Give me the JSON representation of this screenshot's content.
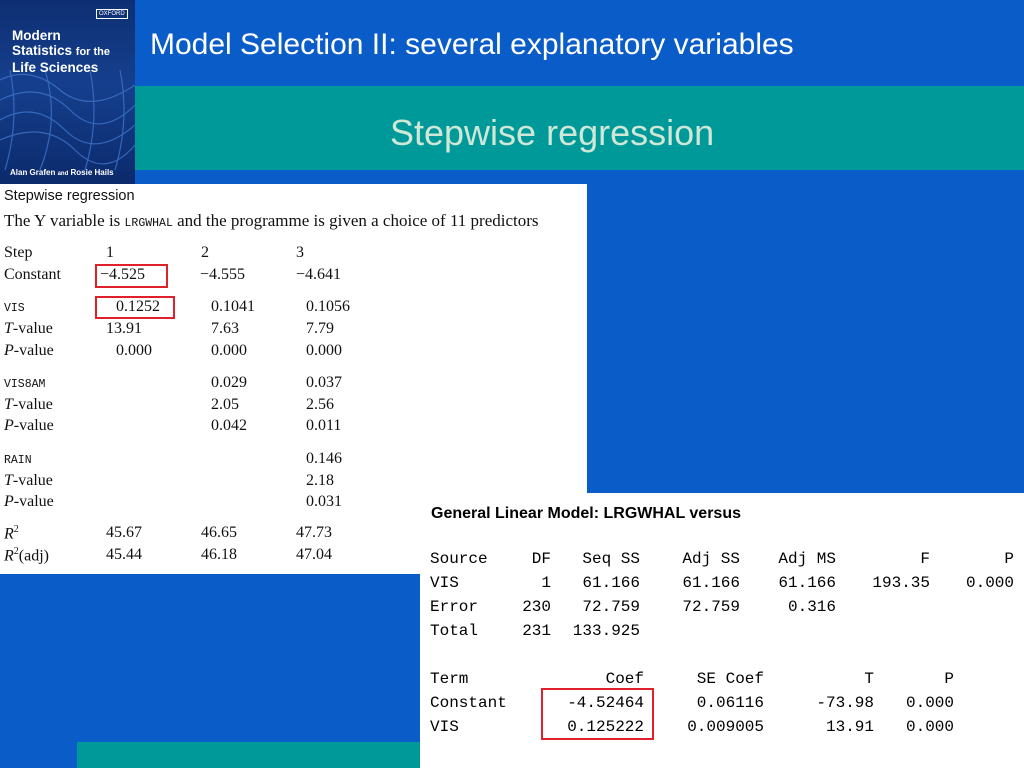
{
  "book": {
    "title_line1": "Modern",
    "title_line2a": "Statistics",
    "title_line2b": "for the",
    "title_line3": "Life Sciences",
    "authors_a": "Alan Grafen",
    "authors_and": "and",
    "authors_b": "Rosie Hails",
    "publisher": "OXFORD"
  },
  "slide": {
    "title": "Model Selection II: several explanatory variables",
    "subtitle": "Stepwise regression"
  },
  "stepwise": {
    "heading": "Stepwise regression",
    "desc_pre": "The Y variable is",
    "desc_var": "LRGWHAL",
    "desc_post": "and the programme is given a choice of 11 predictors",
    "step_label": "Step",
    "steps": [
      "1",
      "2",
      "3"
    ],
    "constant_label": "Constant",
    "constants": [
      "−4.525",
      "−4.555",
      "−4.641"
    ],
    "t_prefix": "T",
    "p_prefix": "P",
    "value_suffix": "-value",
    "predictors": [
      {
        "name": "VIS",
        "coef": [
          "0.1252",
          "0.1041",
          "0.1056"
        ],
        "t": [
          "13.91",
          "7.63",
          "7.79"
        ],
        "p": [
          "0.000",
          "0.000",
          "0.000"
        ]
      },
      {
        "name": "VIS8AM",
        "coef": [
          "0.029",
          "0.037"
        ],
        "t": [
          "2.05",
          "2.56"
        ],
        "p": [
          "0.042",
          "0.011"
        ]
      },
      {
        "name": "RAIN",
        "coef": [
          "0.146"
        ],
        "t": [
          "2.18"
        ],
        "p": [
          "0.031"
        ]
      }
    ],
    "r2_label": "R",
    "r2_sup": "2",
    "r2adj_suffix": "(adj)",
    "r2": [
      "45.67",
      "46.65",
      "47.73"
    ],
    "r2adj": [
      "45.44",
      "46.18",
      "47.04"
    ]
  },
  "glm": {
    "title": "General Linear Model: LRGWHAL versus",
    "anova_header": [
      "Source",
      "DF",
      "Seq SS",
      "Adj SS",
      "Adj MS",
      "F",
      "P"
    ],
    "anova_rows": [
      [
        "VIS",
        "1",
        "61.166",
        "61.166",
        "61.166",
        "193.35",
        "0.000"
      ],
      [
        "Error",
        "230",
        "72.759",
        "72.759",
        "0.316",
        "",
        ""
      ],
      [
        "Total",
        "231",
        "133.925",
        "",
        "",
        "",
        ""
      ]
    ],
    "coef_header": [
      "Term",
      "Coef",
      "SE Coef",
      "T",
      "P"
    ],
    "coef_rows": [
      [
        "Constant",
        "-4.52464",
        "0.06116",
        "-73.98",
        "0.000"
      ],
      [
        "VIS",
        "0.125222",
        "0.009005",
        "13.91",
        "0.000"
      ]
    ]
  }
}
